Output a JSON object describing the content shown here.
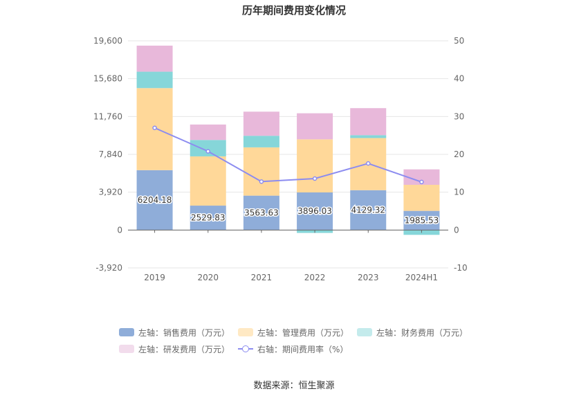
{
  "chart_data": {
    "type": "bar",
    "title": "历年期间费用变化情况",
    "categories": [
      "2019",
      "2020",
      "2021",
      "2022",
      "2023",
      "2024H1"
    ],
    "left_axis": {
      "min": -3920,
      "max": 19600,
      "ticks": [
        "-3,920",
        "0",
        "3,920",
        "7,840",
        "11,760",
        "15,680",
        "19,600"
      ]
    },
    "right_axis": {
      "min": -10,
      "max": 50,
      "ticks": [
        "-10",
        "0",
        "10",
        "20",
        "30",
        "40",
        "50"
      ]
    },
    "series": [
      {
        "name": "左轴：销售费用（万元）",
        "axis": "left",
        "color": "#8fadd9",
        "values": [
          6204.18,
          2529.83,
          3563.63,
          3896.03,
          4129.32,
          1985.53
        ]
      },
      {
        "name": "左轴：管理费用（万元）",
        "axis": "left",
        "color": "#ffd899",
        "values": [
          8500,
          5100,
          5000,
          5500,
          5400,
          2700
        ]
      },
      {
        "name": "左轴：财务费用（万元）",
        "axis": "left",
        "color": "#86d6d9",
        "values": [
          1700,
          1700,
          1200,
          -300,
          300,
          -500
        ]
      },
      {
        "name": "左轴：研发费用（万元）",
        "axis": "left",
        "color": "#e8b8da",
        "values": [
          2700,
          1600,
          2500,
          2700,
          2800,
          1600
        ]
      },
      {
        "name": "右轴：期间费用率（%）",
        "axis": "right",
        "type": "line",
        "color": "#8c8cf0",
        "values": [
          27,
          20.8,
          12.8,
          13.6,
          17.6,
          12.7
        ]
      }
    ],
    "data_labels": [
      "6204.18",
      "2529.83",
      "3563.63",
      "3896.03",
      "4129.32",
      "1985.53"
    ]
  },
  "legend": [
    {
      "label": "左轴：销售费用（万元）",
      "color": "#8fadd9",
      "kind": "bar"
    },
    {
      "label": "左轴：管理费用（万元）",
      "color": "#ffe9c4",
      "kind": "bar"
    },
    {
      "label": "左轴：财务费用（万元）",
      "color": "#c4ebec",
      "kind": "bar"
    },
    {
      "label": "左轴：研发费用（万元）",
      "color": "#f2dcec",
      "kind": "bar"
    },
    {
      "label": "右轴：期间费用率（%）",
      "color": "#8c8cf0",
      "kind": "line"
    }
  ],
  "source": "数据来源：恒生聚源"
}
